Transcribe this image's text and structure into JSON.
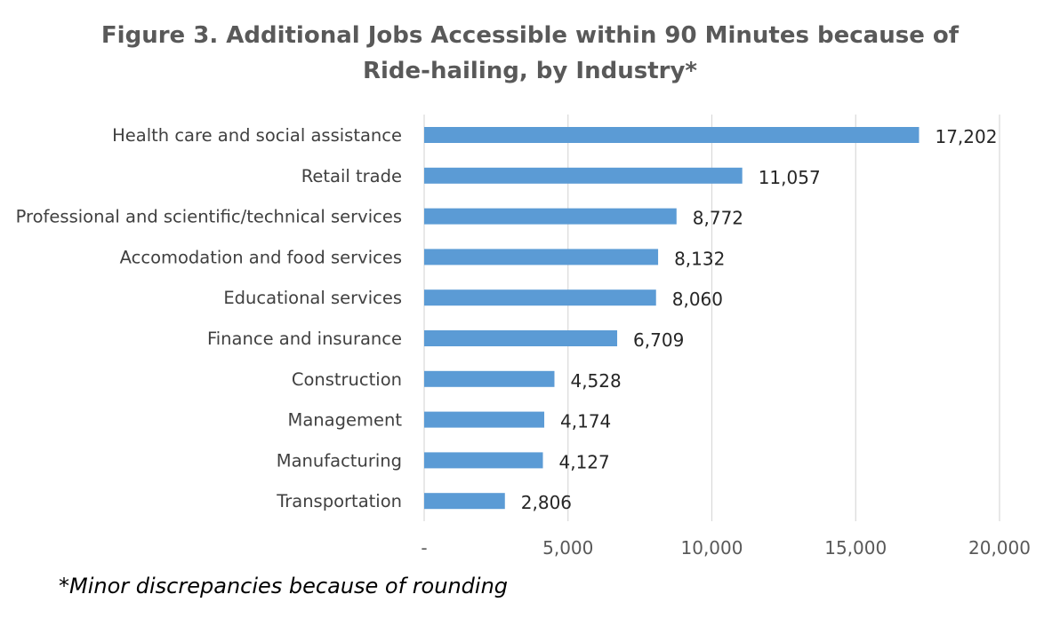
{
  "chart_data": {
    "type": "bar",
    "orientation": "horizontal",
    "title_line1": "Figure 3. Additional Jobs Accessible within 90 Minutes because of",
    "title_line2": "Ride-hailing, by Industry*",
    "categories": [
      "Health care and social assistance",
      "Retail trade",
      "Professional and scientific/technical services",
      "Accomodation and food services",
      "Educational services",
      "Finance and insurance",
      "Construction",
      "Management",
      "Manufacturing",
      "Transportation"
    ],
    "values": [
      17202,
      11057,
      8772,
      8132,
      8060,
      6709,
      4528,
      4174,
      4127,
      2806
    ],
    "value_labels": [
      "17,202",
      "11,057",
      "8,772",
      "8,132",
      "8,060",
      "6,709",
      "4,528",
      "4,174",
      "4,127",
      "2,806"
    ],
    "xlim": [
      0,
      20000
    ],
    "x_ticks": [
      0,
      5000,
      10000,
      15000,
      20000
    ],
    "x_tick_labels": [
      "-",
      "5,000",
      "10,000",
      "15,000",
      "20,000"
    ],
    "grid": true,
    "bar_color": "#5b9bd5",
    "footnote": "*Minor discrepancies because of rounding"
  }
}
